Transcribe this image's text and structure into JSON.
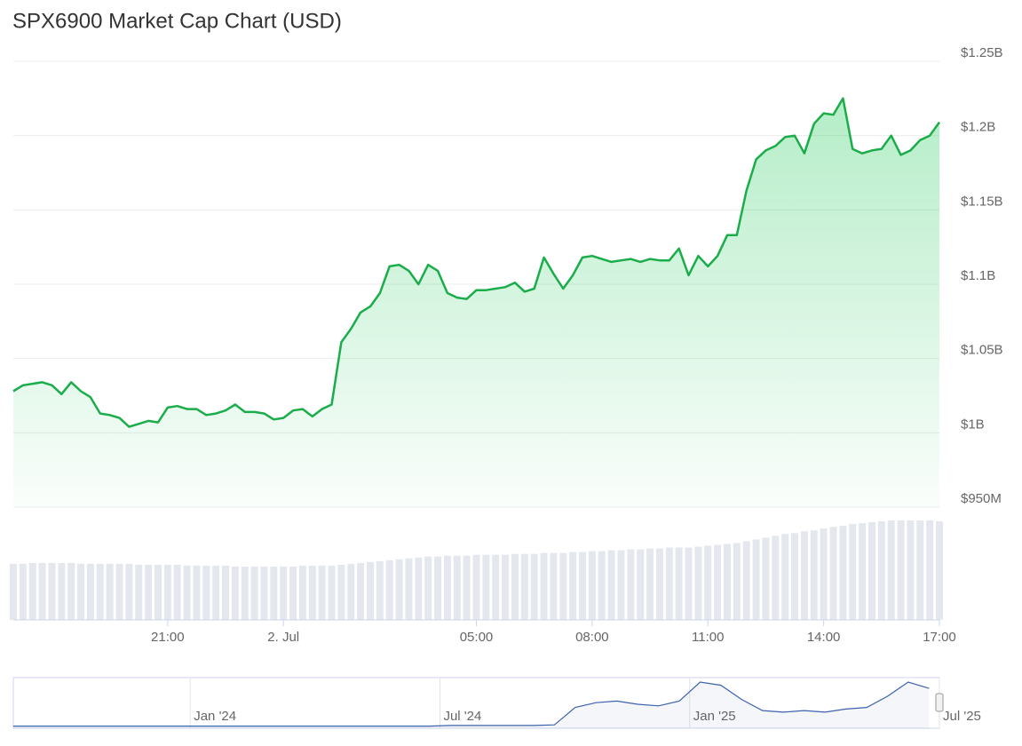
{
  "chart_data": [
    {
      "type": "area",
      "title": "SPX6900 Market Cap Chart (USD)",
      "color": "#1aad4a",
      "grid": true,
      "values": [
        1028000000,
        1032000000,
        1033000000,
        1034000000,
        1032000000,
        1026000000,
        1034000000,
        1028000000,
        1024000000,
        1013000000,
        1012000000,
        1010000000,
        1004000000,
        1006000000,
        1008000000,
        1007000000,
        1017000000,
        1018000000,
        1016000000,
        1016000000,
        1012000000,
        1013000000,
        1015000000,
        1019000000,
        1014000000,
        1014000000,
        1013000000,
        1009000000,
        1010000000,
        1015000000,
        1016000000,
        1011000000,
        1016000000,
        1019000000,
        1061000000,
        1070000000,
        1081000000,
        1085000000,
        1094000000,
        1112000000,
        1113000000,
        1109000000,
        1100000000,
        1113000000,
        1109000000,
        1094000000,
        1091000000,
        1090000000,
        1096000000,
        1096000000,
        1097000000,
        1098000000,
        1101000000,
        1095000000,
        1097000000,
        1118000000,
        1107000000,
        1097000000,
        1106000000,
        1118000000,
        1119000000,
        1117000000,
        1115000000,
        1116000000,
        1117000000,
        1115000000,
        1117000000,
        1116000000,
        1116000000,
        1124000000,
        1106000000,
        1119000000,
        1112000000,
        1119000000,
        1133000000,
        1133000000,
        1163000000,
        1184000000,
        1190000000,
        1193000000,
        1199000000,
        1200000000,
        1188000000,
        1208000000,
        1215000000,
        1214000000,
        1225000000,
        1191000000,
        1188000000,
        1190000000,
        1191000000,
        1200000000,
        1187000000,
        1190000000,
        1197000000,
        1200000000,
        1209000000
      ],
      "volume": [
        62,
        62,
        63,
        63,
        63,
        63,
        63,
        62,
        62,
        62,
        62,
        62,
        62,
        61,
        61,
        61,
        61,
        61,
        60,
        60,
        60,
        60,
        60,
        59,
        59,
        59,
        59,
        59,
        59,
        59,
        60,
        60,
        60,
        60,
        61,
        62,
        63,
        64,
        65,
        66,
        67,
        68,
        69,
        70,
        70,
        71,
        71,
        71,
        72,
        72,
        72,
        72,
        73,
        73,
        73,
        74,
        74,
        74,
        75,
        75,
        76,
        76,
        77,
        77,
        78,
        78,
        79,
        79,
        80,
        80,
        80,
        81,
        82,
        83,
        84,
        85,
        87,
        89,
        91,
        93,
        95,
        96,
        98,
        99,
        101,
        103,
        104,
        106,
        107,
        108,
        109,
        110,
        110,
        110,
        110,
        110,
        109
      ],
      "volume_color": "#e4e8ee",
      "xlim": [
        0,
        96
      ],
      "xticks": [
        {
          "value": 16,
          "label": "21:00"
        },
        {
          "value": 28,
          "label": "2. Jul"
        },
        {
          "value": 48,
          "label": "05:00"
        },
        {
          "value": 60,
          "label": "08:00"
        },
        {
          "value": 72,
          "label": "11:00"
        },
        {
          "value": 84,
          "label": "14:00"
        },
        {
          "value": 96,
          "label": "17:00"
        }
      ],
      "ylim": [
        950000000,
        1250000000
      ],
      "yticks": [
        {
          "value": 950000000,
          "label": "$950M"
        },
        {
          "value": 1000000000,
          "label": "$1B"
        },
        {
          "value": 1050000000,
          "label": "$1.05B"
        },
        {
          "value": 1100000000,
          "label": "$1.1B"
        },
        {
          "value": 1150000000,
          "label": "$1.15B"
        },
        {
          "value": 1200000000,
          "label": "$1.2B"
        },
        {
          "value": 1250000000,
          "label": "$1.25B"
        }
      ]
    },
    {
      "type": "navigator",
      "color": "#3d62ad",
      "values": [
        10000000,
        10000000,
        10000000,
        10000000,
        10000000,
        10000000,
        10000000,
        10000000,
        10000000,
        10000000,
        10000000,
        10000000,
        10000000,
        10000000,
        10000000,
        10000000,
        10000000,
        10000000,
        10000000,
        10000000,
        10000000,
        30000000,
        30000000,
        30000000,
        30000000,
        30000000,
        50000000,
        600000000,
        750000000,
        800000000,
        700000000,
        650000000,
        800000000,
        1400000000,
        1300000000,
        850000000,
        500000000,
        450000000,
        500000000,
        450000000,
        550000000,
        600000000,
        950000000,
        1400000000,
        1200000000
      ],
      "xlim": [
        0,
        44.5
      ],
      "xticks": [
        {
          "value": 8.5,
          "label": "Jan '24"
        },
        {
          "value": 20.5,
          "label": "Jul '24"
        },
        {
          "value": 32.5,
          "label": "Jan '25"
        },
        {
          "value": 44.5,
          "label": "Jul '25"
        }
      ]
    }
  ]
}
